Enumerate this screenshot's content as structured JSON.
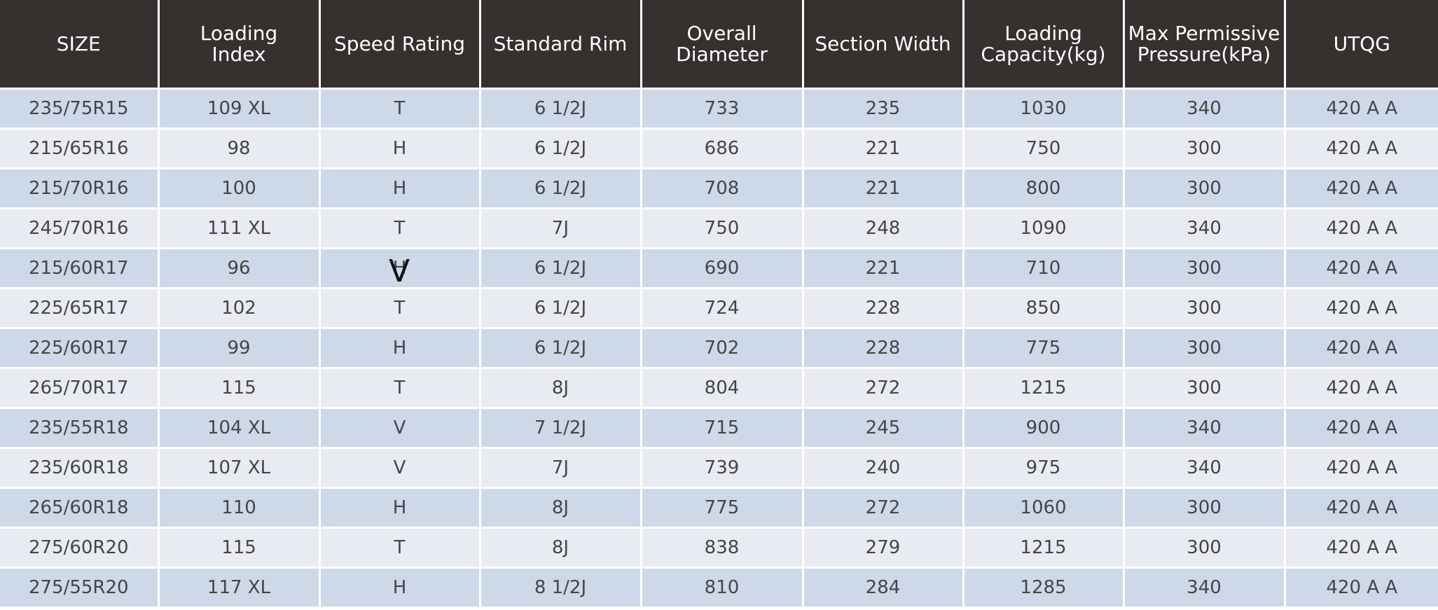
{
  "table": {
    "header": [
      [
        "SIZE"
      ],
      [
        "Loading",
        "Index"
      ],
      [
        "Speed Rating"
      ],
      [
        "Standard Rim"
      ],
      [
        "Overall",
        "Diameter"
      ],
      [
        "Section Width"
      ],
      [
        "Loading",
        "Capacity(kg)"
      ],
      [
        "Max Permissive",
        "Pressure(kPa)"
      ],
      [
        "UTQG"
      ]
    ],
    "rows": [
      [
        "235/75R15",
        "109 XL",
        "T",
        "6 1/2J",
        "733",
        "235",
        "1030",
        "340",
        "420 A A"
      ],
      [
        "215/65R16",
        "98",
        "H",
        "6 1/2J",
        "686",
        "221",
        "750",
        "300",
        "420 A A"
      ],
      [
        "215/70R16",
        "100",
        "H",
        "6 1/2J",
        "708",
        "221",
        "800",
        "300",
        "420 A A"
      ],
      [
        "245/70R16",
        "111 XL",
        "T",
        "7J",
        "750",
        "248",
        "1090",
        "340",
        "420 A A"
      ],
      [
        "215/60R17",
        "96",
        "H",
        "6 1/2J",
        "690",
        "221",
        "710",
        "300",
        "420 A A"
      ],
      [
        "225/65R17",
        "102",
        "T",
        "6 1/2J",
        "724",
        "228",
        "850",
        "300",
        "420 A A"
      ],
      [
        "225/60R17",
        "99",
        "H",
        "6 1/2J",
        "702",
        "228",
        "775",
        "300",
        "420 A A"
      ],
      [
        "265/70R17",
        "115",
        "T",
        "8J",
        "804",
        "272",
        "1215",
        "300",
        "420 A A"
      ],
      [
        "235/55R18",
        "104 XL",
        "V",
        "7 1/2J",
        "715",
        "245",
        "900",
        "340",
        "420 A A"
      ],
      [
        "235/60R18",
        "107 XL",
        "V",
        "7J",
        "739",
        "240",
        "975",
        "340",
        "420 A A"
      ],
      [
        "265/60R18",
        "110",
        "H",
        "8J",
        "775",
        "272",
        "1060",
        "300",
        "420 A A"
      ],
      [
        "275/60R20",
        "115",
        "T",
        "8J",
        "838",
        "279",
        "1215",
        "300",
        "420 A A"
      ],
      [
        "275/55R20",
        "117 XL",
        "H",
        "8 1/2J",
        "810",
        "284",
        "1285",
        "340",
        "420 A A"
      ]
    ],
    "overlay": "V"
  }
}
